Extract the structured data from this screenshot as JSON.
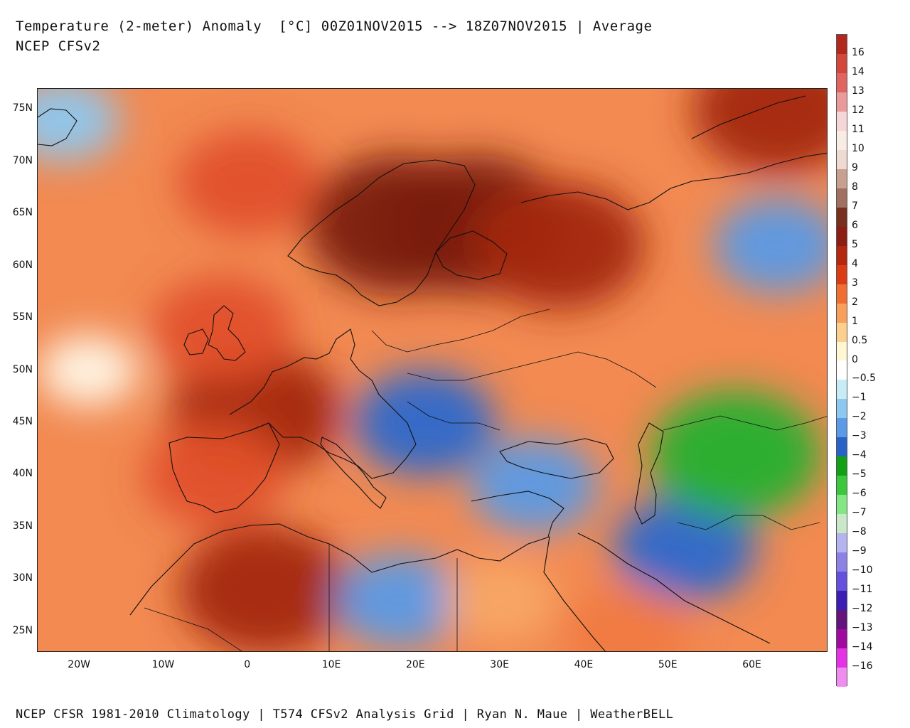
{
  "header": {
    "title": "Temperature (2-meter) Anomaly  [°C] 00Z01NOV2015 --> 18Z07NOV2015 | Average",
    "model": "NCEP CFSv2"
  },
  "footer": {
    "credit": "NCEP CFSR 1981-2010 Climatology | T574 CFSv2 Analysis Grid | Ryan N. Maue | WeatherBELL"
  },
  "map": {
    "lat_labels": [
      "75N",
      "70N",
      "65N",
      "60N",
      "55N",
      "50N",
      "45N",
      "40N",
      "35N",
      "30N",
      "25N"
    ],
    "lon_labels": [
      "20W",
      "10W",
      "0",
      "10E",
      "20E",
      "30E",
      "40E",
      "50E",
      "60E"
    ],
    "extent": {
      "lon_min": -25,
      "lon_max": 69,
      "lat_min": 23,
      "lat_max": 77
    },
    "anomaly_regions": [
      {
        "region": "Scandinavia",
        "lon": 18,
        "lat": 64,
        "anomaly": 6
      },
      {
        "region": "Finland",
        "lon": 27,
        "lat": 64,
        "anomaly": 6
      },
      {
        "region": "NW Russia",
        "lon": 37,
        "lat": 62,
        "anomaly": 5
      },
      {
        "region": "France",
        "lon": 1,
        "lat": 46,
        "anomaly": 5
      },
      {
        "region": "British Isles",
        "lon": -3,
        "lat": 54,
        "anomaly": 3
      },
      {
        "region": "Norwegian Sea",
        "lon": 0,
        "lat": 68,
        "anomaly": 3
      },
      {
        "region": "Iberia",
        "lon": -4,
        "lat": 40,
        "anomaly": 3
      },
      {
        "region": "Sahara (Algeria)",
        "lon": 2,
        "lat": 29,
        "anomaly": 5
      },
      {
        "region": "Kara Sea",
        "lon": 63,
        "lat": 75,
        "anomaly": 5
      },
      {
        "region": "Balkans",
        "lon": 21,
        "lat": 45,
        "anomaly": -3
      },
      {
        "region": "Libya",
        "lon": 18,
        "lat": 28,
        "anomaly": -2
      },
      {
        "region": "Turkey",
        "lon": 34,
        "lat": 39,
        "anomaly": -2
      },
      {
        "region": "Iran",
        "lon": 52,
        "lat": 33,
        "anomaly": -3
      },
      {
        "region": "Caspian / Kazakhstan",
        "lon": 58,
        "lat": 42,
        "anomaly": -5
      },
      {
        "region": "West Siberia",
        "lon": 63,
        "lat": 62,
        "anomaly": -2
      },
      {
        "region": "Greenland",
        "lon": -22,
        "lat": 74,
        "anomaly": -1
      },
      {
        "region": "Atlantic W",
        "lon": -19,
        "lat": 50,
        "anomaly": 0
      },
      {
        "region": "Arabia",
        "lon": 45,
        "lat": 25,
        "anomaly": 2
      },
      {
        "region": "Egypt",
        "lon": 30,
        "lat": 28,
        "anomaly": 1
      }
    ]
  },
  "colorbar": {
    "labels": [
      "16",
      "14",
      "13",
      "12",
      "11",
      "10",
      "9",
      "8",
      "7",
      "6",
      "5",
      "4",
      "3",
      "2",
      "1",
      "0.5",
      "0",
      "−0.5",
      "−1",
      "−2",
      "−3",
      "−4",
      "−5",
      "−6",
      "−7",
      "−8",
      "−9",
      "−10",
      "−11",
      "−12",
      "−13",
      "−14",
      "−16"
    ],
    "colors": [
      "#b2281e",
      "#d2463c",
      "#e06460",
      "#eb9a9a",
      "#f6d6d6",
      "#f8ece4",
      "#eedad0",
      "#c8a090",
      "#a07060",
      "#78301e",
      "#8c1e14",
      "#b4280f",
      "#dc3c14",
      "#f06e32",
      "#f8a05a",
      "#fcd08c",
      "#fff6d2",
      "#ffffff",
      "#c8ecf6",
      "#8cc8f0",
      "#5a9ae6",
      "#2864c8",
      "#14a014",
      "#3cc83c",
      "#82e682",
      "#c8e8c8",
      "#b4b4f0",
      "#8c82e6",
      "#6450dc",
      "#3c1eb4",
      "#64147a",
      "#a00aa0",
      "#e632e6",
      "#f08cf0"
    ]
  }
}
